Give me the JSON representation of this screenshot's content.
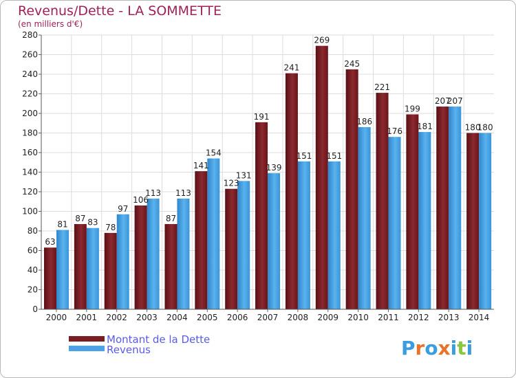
{
  "chart_data": {
    "type": "bar",
    "title": "Revenus/Dette - LA SOMMETTE",
    "subtitle": "(en milliers d'€)",
    "categories": [
      "2000",
      "2001",
      "2002",
      "2003",
      "2004",
      "2005",
      "2006",
      "2007",
      "2008",
      "2009",
      "2010",
      "2011",
      "2012",
      "2013",
      "2014"
    ],
    "series": [
      {
        "name": "Montant de la Dette",
        "values": [
          63,
          87,
          78,
          106,
          87,
          141,
          123,
          191,
          241,
          269,
          245,
          221,
          199,
          207,
          180
        ],
        "color": "#7a1c22"
      },
      {
        "name": "Revenus",
        "values": [
          81,
          83,
          97,
          113,
          113,
          154,
          131,
          139,
          151,
          151,
          186,
          176,
          181,
          207,
          180
        ],
        "color": "#4aa3e6"
      }
    ],
    "yticks": [
      0,
      20,
      40,
      60,
      80,
      100,
      120,
      140,
      160,
      180,
      200,
      220,
      240,
      260,
      280
    ],
    "ylim": [
      0,
      280
    ],
    "grid": true,
    "legend": "bottom-left"
  },
  "logo": {
    "letters": [
      "P",
      "r",
      "o",
      "x",
      "i",
      "t",
      "i"
    ],
    "colors": [
      "#3a9de0",
      "#e8742a",
      "#3a9de0",
      "#e8742a",
      "#3a9de0",
      "#8cc63f",
      "#3a9de0"
    ]
  }
}
